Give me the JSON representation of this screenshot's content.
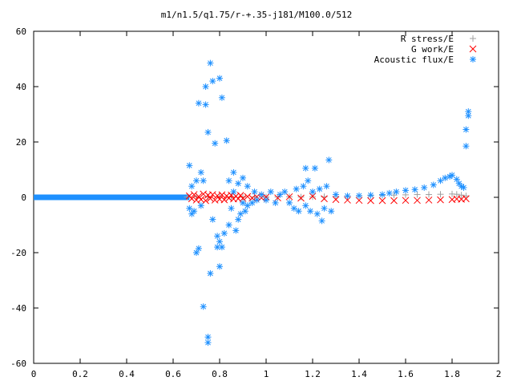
{
  "chart_data": {
    "type": "scatter",
    "title": "m1/n1.5/q1.75/r-+.35-j181/M100.0/512",
    "xlabel": "",
    "ylabel": "",
    "xlim": [
      0,
      2
    ],
    "ylim": [
      -60,
      60
    ],
    "x_ticks": [
      "0",
      "0.2",
      "0.4",
      "0.6",
      "0.8",
      "1",
      "1.2",
      "1.4",
      "1.6",
      "1.8",
      "2"
    ],
    "y_ticks": [
      "60",
      "40",
      "20",
      "0",
      "-20",
      "-40",
      "-60"
    ],
    "grid": false,
    "legend_position": "top-right",
    "series": [
      {
        "name": "R stress/E",
        "marker": "plus",
        "color": "#a0a0a0",
        "points": [
          [
            0.66,
            0.1
          ],
          [
            0.7,
            0.2
          ],
          [
            0.75,
            0.1
          ],
          [
            0.8,
            0.3
          ],
          [
            0.85,
            0.2
          ],
          [
            0.9,
            0.1
          ],
          [
            0.95,
            0.2
          ],
          [
            1.0,
            0.1
          ],
          [
            1.05,
            0.1
          ],
          [
            1.1,
            0.2
          ],
          [
            1.15,
            0.1
          ],
          [
            1.2,
            0.2
          ],
          [
            1.25,
            0.2
          ],
          [
            1.3,
            0.3
          ],
          [
            1.35,
            0.4
          ],
          [
            1.4,
            0.5
          ],
          [
            1.45,
            0.6
          ],
          [
            1.5,
            0.7
          ],
          [
            1.55,
            0.8
          ],
          [
            1.6,
            0.9
          ],
          [
            1.65,
            1.0
          ],
          [
            1.7,
            1.0
          ],
          [
            1.75,
            1.1
          ],
          [
            1.8,
            1.2
          ],
          [
            1.82,
            1.1
          ],
          [
            1.84,
            0.8
          ],
          [
            1.86,
            0.5
          ]
        ]
      },
      {
        "name": "G work/E",
        "marker": "cross",
        "color": "#ff0000",
        "points": [
          [
            0.67,
            0.5
          ],
          [
            0.68,
            -0.5
          ],
          [
            0.69,
            1.0
          ],
          [
            0.7,
            -1.0
          ],
          [
            0.71,
            0.3
          ],
          [
            0.72,
            -0.8
          ],
          [
            0.73,
            1.2
          ],
          [
            0.74,
            -1.2
          ],
          [
            0.75,
            0.8
          ],
          [
            0.76,
            -0.4
          ],
          [
            0.77,
            1.0
          ],
          [
            0.78,
            -1.0
          ],
          [
            0.79,
            0.6
          ],
          [
            0.8,
            -0.7
          ],
          [
            0.81,
            0.9
          ],
          [
            0.82,
            -0.9
          ],
          [
            0.83,
            0.5
          ],
          [
            0.84,
            -0.3
          ],
          [
            0.85,
            0.8
          ],
          [
            0.86,
            -0.6
          ],
          [
            0.87,
            0.4
          ],
          [
            0.88,
            -0.5
          ],
          [
            0.89,
            0.7
          ],
          [
            0.9,
            -0.4
          ],
          [
            0.92,
            0.3
          ],
          [
            0.94,
            -0.3
          ],
          [
            0.96,
            0.2
          ],
          [
            0.98,
            -0.2
          ],
          [
            1.0,
            0.1
          ],
          [
            1.05,
            -0.2
          ],
          [
            1.1,
            0.2
          ],
          [
            1.15,
            -0.3
          ],
          [
            1.2,
            0.4
          ],
          [
            1.25,
            -0.5
          ],
          [
            1.3,
            -0.8
          ],
          [
            1.35,
            -1.0
          ],
          [
            1.4,
            -1.1
          ],
          [
            1.45,
            -1.2
          ],
          [
            1.5,
            -1.2
          ],
          [
            1.55,
            -1.2
          ],
          [
            1.6,
            -1.1
          ],
          [
            1.65,
            -1.1
          ],
          [
            1.7,
            -1.0
          ],
          [
            1.75,
            -0.9
          ],
          [
            1.8,
            -0.8
          ],
          [
            1.82,
            -0.6
          ],
          [
            1.84,
            -0.7
          ],
          [
            1.86,
            -0.5
          ]
        ]
      },
      {
        "name": "Acoustic flux/E",
        "marker": "star",
        "color": "#1e90ff",
        "points": [
          [
            0.67,
            11.5
          ],
          [
            0.67,
            -4
          ],
          [
            0.68,
            -6
          ],
          [
            0.68,
            4
          ],
          [
            0.69,
            -5
          ],
          [
            0.7,
            -20
          ],
          [
            0.7,
            6
          ],
          [
            0.71,
            34
          ],
          [
            0.71,
            -18.5
          ],
          [
            0.72,
            9
          ],
          [
            0.72,
            -3
          ],
          [
            0.73,
            -39.5
          ],
          [
            0.73,
            6
          ],
          [
            0.74,
            33.5
          ],
          [
            0.74,
            40
          ],
          [
            0.75,
            -50.5
          ],
          [
            0.75,
            -52.5
          ],
          [
            0.75,
            23.5
          ],
          [
            0.76,
            48.5
          ],
          [
            0.76,
            -27.5
          ],
          [
            0.77,
            42
          ],
          [
            0.77,
            -8
          ],
          [
            0.78,
            19.5
          ],
          [
            0.79,
            -18
          ],
          [
            0.79,
            -14
          ],
          [
            0.8,
            43
          ],
          [
            0.8,
            -25
          ],
          [
            0.8,
            -16
          ],
          [
            0.81,
            36
          ],
          [
            0.81,
            -18
          ],
          [
            0.82,
            -13
          ],
          [
            0.83,
            20.5
          ],
          [
            0.84,
            -10
          ],
          [
            0.84,
            6
          ],
          [
            0.85,
            -4
          ],
          [
            0.86,
            9
          ],
          [
            0.86,
            2
          ],
          [
            0.87,
            -12
          ],
          [
            0.88,
            -8
          ],
          [
            0.88,
            5
          ],
          [
            0.89,
            -6
          ],
          [
            0.9,
            -2
          ],
          [
            0.9,
            7
          ],
          [
            0.91,
            -5
          ],
          [
            0.92,
            -3
          ],
          [
            0.92,
            4
          ],
          [
            0.94,
            -2
          ],
          [
            0.95,
            2
          ],
          [
            0.96,
            -1
          ],
          [
            0.98,
            1
          ],
          [
            1.0,
            -1
          ],
          [
            1.02,
            2
          ],
          [
            1.04,
            -2
          ],
          [
            1.06,
            1
          ],
          [
            1.08,
            2
          ],
          [
            1.1,
            -2
          ],
          [
            1.12,
            -4
          ],
          [
            1.13,
            3
          ],
          [
            1.14,
            -5
          ],
          [
            1.16,
            4
          ],
          [
            1.17,
            10.5
          ],
          [
            1.17,
            -3
          ],
          [
            1.18,
            6
          ],
          [
            1.19,
            -5
          ],
          [
            1.2,
            2
          ],
          [
            1.21,
            10.5
          ],
          [
            1.22,
            -6
          ],
          [
            1.23,
            3
          ],
          [
            1.24,
            -8.5
          ],
          [
            1.25,
            -4
          ],
          [
            1.26,
            4
          ],
          [
            1.27,
            13.5
          ],
          [
            1.28,
            -5
          ],
          [
            1.3,
            1
          ],
          [
            1.35,
            0.5
          ],
          [
            1.4,
            0.6
          ],
          [
            1.45,
            0.8
          ],
          [
            1.5,
            1.0
          ],
          [
            1.53,
            1.5
          ],
          [
            1.56,
            2.0
          ],
          [
            1.6,
            2.5
          ],
          [
            1.64,
            2.8
          ],
          [
            1.68,
            3.5
          ],
          [
            1.72,
            4.5
          ],
          [
            1.75,
            6.0
          ],
          [
            1.77,
            7.0
          ],
          [
            1.79,
            7.5
          ],
          [
            1.8,
            8.0
          ],
          [
            1.82,
            6.5
          ],
          [
            1.83,
            5.0
          ],
          [
            1.84,
            4.0
          ],
          [
            1.85,
            3.5
          ],
          [
            1.86,
            18.5
          ],
          [
            1.86,
            24.5
          ],
          [
            1.87,
            29.5
          ],
          [
            1.87,
            31
          ]
        ]
      }
    ]
  }
}
